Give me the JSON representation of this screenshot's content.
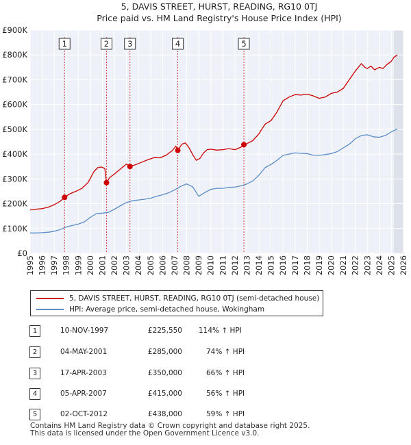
{
  "chart_data": {
    "type": "line",
    "title": "5, DAVIS STREET, HURST, READING, RG10 0TJ",
    "subtitle": "Price paid vs. HM Land Registry's House Price Index (HPI)",
    "xlabel": "",
    "ylabel": "",
    "xlim": [
      1995,
      2026
    ],
    "ylim": [
      0,
      900000
    ],
    "yticks": [
      {
        "value": 0,
        "label": "£0"
      },
      {
        "value": 100000,
        "label": "£100K"
      },
      {
        "value": 200000,
        "label": "£200K"
      },
      {
        "value": 300000,
        "label": "£300K"
      },
      {
        "value": 400000,
        "label": "£400K"
      },
      {
        "value": 500000,
        "label": "£500K"
      },
      {
        "value": 600000,
        "label": "£600K"
      },
      {
        "value": 700000,
        "label": "£700K"
      },
      {
        "value": 800000,
        "label": "£800K"
      },
      {
        "value": 900000,
        "label": "£900K"
      }
    ],
    "xticks": [
      "1995",
      "1996",
      "1997",
      "1998",
      "1999",
      "2000",
      "2001",
      "2002",
      "2003",
      "2004",
      "2005",
      "2006",
      "2007",
      "2008",
      "2009",
      "2010",
      "2011",
      "2012",
      "2013",
      "2014",
      "2015",
      "2016",
      "2017",
      "2018",
      "2019",
      "2020",
      "2021",
      "2022",
      "2023",
      "2024",
      "2025",
      "2026"
    ],
    "grid": true,
    "forecast_start": 2025.2,
    "series": [
      {
        "name": "5, DAVIS STREET, HURST, READING, RG10 0TJ (semi-detached house)",
        "color": "#cc0000",
        "x": [
          1995.0,
          1995.5,
          1996.0,
          1996.5,
          1997.0,
          1997.5,
          1997.86,
          1998.3,
          1998.8,
          1999.3,
          1999.8,
          2000.3,
          2000.6,
          2000.9,
          2001.2,
          2001.34,
          2001.6,
          2002.0,
          2002.5,
          2003.0,
          2003.29,
          2003.8,
          2004.3,
          2004.8,
          2005.3,
          2005.8,
          2006.3,
          2006.8,
          2007.1,
          2007.26,
          2007.6,
          2007.9,
          2008.2,
          2008.5,
          2008.8,
          2009.1,
          2009.4,
          2009.7,
          2010.0,
          2010.5,
          2011.0,
          2011.5,
          2012.0,
          2012.5,
          2012.75,
          2013.0,
          2013.5,
          2014.0,
          2014.5,
          2015.0,
          2015.5,
          2016.0,
          2016.5,
          2017.0,
          2017.5,
          2018.0,
          2018.5,
          2019.0,
          2019.5,
          2020.0,
          2020.5,
          2021.0,
          2021.5,
          2022.0,
          2022.5,
          2022.8,
          2023.0,
          2023.3,
          2023.6,
          2024.0,
          2024.3,
          2024.6,
          2025.0,
          2025.2,
          2025.5
        ],
        "values": [
          175000,
          178000,
          180000,
          186000,
          196000,
          210000,
          225550,
          240000,
          250000,
          262000,
          285000,
          330000,
          345000,
          348000,
          342000,
          285000,
          305000,
          320000,
          340000,
          360000,
          350000,
          358000,
          368000,
          378000,
          386000,
          385000,
          396000,
          414000,
          432000,
          415000,
          440000,
          445000,
          425000,
          398000,
          375000,
          383000,
          405000,
          418000,
          420000,
          416000,
          418000,
          422000,
          418000,
          428000,
          438000,
          442000,
          455000,
          482000,
          520000,
          535000,
          570000,
          615000,
          630000,
          640000,
          638000,
          642000,
          635000,
          625000,
          630000,
          645000,
          650000,
          665000,
          700000,
          735000,
          765000,
          750000,
          745000,
          755000,
          740000,
          750000,
          745000,
          760000,
          775000,
          790000,
          800000
        ]
      },
      {
        "name": "HPI: Average price, semi-detached house, Wokingham",
        "color": "#5b8cc8",
        "x": [
          1995.0,
          1995.5,
          1996.0,
          1996.5,
          1997.0,
          1997.5,
          1998.0,
          1998.5,
          1999.0,
          1999.5,
          2000.0,
          2000.5,
          2001.0,
          2001.5,
          2002.0,
          2002.5,
          2003.0,
          2003.5,
          2004.0,
          2004.5,
          2005.0,
          2005.5,
          2006.0,
          2006.5,
          2007.0,
          2007.5,
          2008.0,
          2008.5,
          2009.0,
          2009.5,
          2010.0,
          2010.5,
          2011.0,
          2011.5,
          2012.0,
          2012.5,
          2013.0,
          2013.5,
          2014.0,
          2014.5,
          2015.0,
          2015.5,
          2016.0,
          2016.5,
          2017.0,
          2017.5,
          2018.0,
          2018.5,
          2019.0,
          2019.5,
          2020.0,
          2020.5,
          2021.0,
          2021.5,
          2022.0,
          2022.5,
          2023.0,
          2023.5,
          2024.0,
          2024.5,
          2025.0,
          2025.5
        ],
        "values": [
          82000,
          82000,
          83000,
          85000,
          89000,
          96000,
          106000,
          112000,
          118000,
          127000,
          145000,
          160000,
          162000,
          165000,
          178000,
          192000,
          205000,
          212000,
          215000,
          218000,
          222000,
          230000,
          236000,
          244000,
          256000,
          270000,
          280000,
          268000,
          230000,
          245000,
          258000,
          262000,
          262000,
          266000,
          267000,
          272000,
          280000,
          292000,
          315000,
          345000,
          358000,
          375000,
          395000,
          400000,
          405000,
          403000,
          402000,
          396000,
          395000,
          398000,
          402000,
          410000,
          425000,
          440000,
          462000,
          475000,
          478000,
          470000,
          468000,
          475000,
          490000,
          502000
        ]
      }
    ],
    "sales": [
      {
        "num": "1",
        "x": 1997.86,
        "value": 225550
      },
      {
        "num": "2",
        "x": 2001.34,
        "value": 285000
      },
      {
        "num": "3",
        "x": 2003.29,
        "value": 350000
      },
      {
        "num": "4",
        "x": 2007.26,
        "value": 415000
      },
      {
        "num": "5",
        "x": 2012.75,
        "value": 438000
      }
    ]
  },
  "legend": {
    "property_label": "5, DAVIS STREET, HURST, READING, RG10 0TJ (semi-detached house)",
    "hpi_label": "HPI: Average price, semi-detached house, Wokingham"
  },
  "transactions": [
    {
      "num": "1",
      "date": "10-NOV-1997",
      "price": "£225,550",
      "hpi": "114% ↑ HPI"
    },
    {
      "num": "2",
      "date": "04-MAY-2001",
      "price": "£285,000",
      "hpi": "74% ↑ HPI"
    },
    {
      "num": "3",
      "date": "17-APR-2003",
      "price": "£350,000",
      "hpi": "66% ↑ HPI"
    },
    {
      "num": "4",
      "date": "05-APR-2007",
      "price": "£415,000",
      "hpi": "56% ↑ HPI"
    },
    {
      "num": "5",
      "date": "02-OCT-2012",
      "price": "£438,000",
      "hpi": "59% ↑ HPI"
    }
  ],
  "footer": {
    "line1": "Contains HM Land Registry data © Crown copyright and database right 2025.",
    "line2": "This data is licensed under the Open Government Licence v3.0."
  }
}
